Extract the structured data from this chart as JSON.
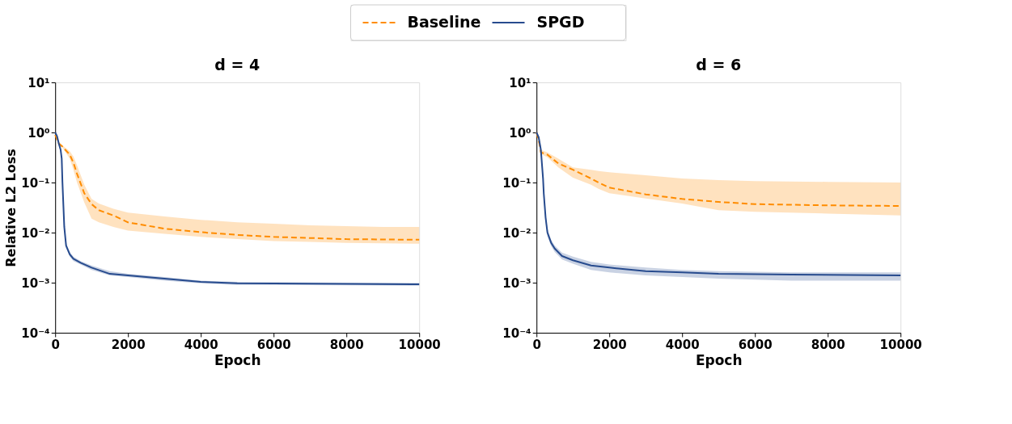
{
  "chart_data": [
    {
      "type": "line",
      "title": "d = 4",
      "xlabel": "Epoch",
      "ylabel": "Relative L2 Loss",
      "log": true,
      "grid": false,
      "legend": "top",
      "xlim": [
        0,
        10000
      ],
      "xticks": [
        0,
        2000,
        4000,
        6000,
        8000,
        10000
      ],
      "ylim": [
        0.0001,
        10
      ],
      "yticks": [
        {
          "value": 10,
          "label": "10¹"
        },
        {
          "value": 1,
          "label": "10⁰"
        },
        {
          "value": 0.1,
          "label": "10⁻¹"
        },
        {
          "value": 0.01,
          "label": "10⁻²"
        },
        {
          "value": 0.001,
          "label": "10⁻³"
        },
        {
          "value": 0.0001,
          "label": "10⁻⁴"
        }
      ],
      "series": [
        {
          "name": "Baseline",
          "color": "#ff8c00",
          "line_style": "dashed",
          "x": [
            0,
            100,
            200,
            400,
            500,
            600,
            800,
            1000,
            1200,
            1600,
            2000,
            3000,
            4000,
            5000,
            6000,
            7000,
            8000,
            9000,
            10000
          ],
          "values": [
            0.9,
            0.6,
            0.52,
            0.36,
            0.25,
            0.15,
            0.061,
            0.037,
            0.028,
            0.022,
            0.016,
            0.012,
            0.0102,
            0.009,
            0.0082,
            0.0078,
            0.0074,
            0.0073,
            0.0072
          ],
          "upper": [
            0.95,
            0.65,
            0.55,
            0.42,
            0.33,
            0.22,
            0.09,
            0.047,
            0.038,
            0.03,
            0.025,
            0.021,
            0.018,
            0.016,
            0.015,
            0.014,
            0.0135,
            0.013,
            0.013
          ],
          "lower": [
            0.85,
            0.55,
            0.5,
            0.3,
            0.18,
            0.1,
            0.04,
            0.019,
            0.016,
            0.013,
            0.011,
            0.0095,
            0.0082,
            0.0074,
            0.0068,
            0.0065,
            0.0062,
            0.0061,
            0.006
          ]
        },
        {
          "name": "SPGD",
          "color": "#274b8e",
          "line_style": "solid",
          "x": [
            0,
            50,
            100,
            150,
            180,
            200,
            250,
            300,
            400,
            500,
            700,
            1000,
            1500,
            2000,
            3000,
            4000,
            5000,
            6000,
            8000,
            10000
          ],
          "values": [
            1.0,
            0.85,
            0.6,
            0.45,
            0.3,
            0.1,
            0.013,
            0.0055,
            0.0037,
            0.003,
            0.0025,
            0.002,
            0.0015,
            0.0014,
            0.0012,
            0.00104,
            0.00097,
            0.00096,
            0.00095,
            0.00093
          ],
          "upper": [
            1.0,
            0.9,
            0.65,
            0.5,
            0.33,
            0.11,
            0.015,
            0.0062,
            0.0041,
            0.0033,
            0.0027,
            0.0022,
            0.0017,
            0.0015,
            0.0013,
            0.0011,
            0.00104,
            0.00102,
            0.001,
            0.00099
          ],
          "lower": [
            0.98,
            0.8,
            0.55,
            0.4,
            0.27,
            0.09,
            0.011,
            0.0049,
            0.0033,
            0.0027,
            0.0023,
            0.0018,
            0.0014,
            0.0013,
            0.0011,
            0.00097,
            0.0009,
            0.0009,
            0.00089,
            0.00087
          ]
        }
      ]
    },
    {
      "type": "line",
      "title": "d = 6",
      "xlabel": "Epoch",
      "log": true,
      "grid": false,
      "xlim": [
        0,
        10000
      ],
      "xticks": [
        0,
        2000,
        4000,
        6000,
        8000,
        10000
      ],
      "ylim": [
        0.0001,
        10
      ],
      "yticks": [
        {
          "value": 10,
          "label": "10¹"
        },
        {
          "value": 1,
          "label": "10⁰"
        },
        {
          "value": 0.1,
          "label": "10⁻¹"
        },
        {
          "value": 0.01,
          "label": "10⁻²"
        },
        {
          "value": 0.001,
          "label": "10⁻³"
        },
        {
          "value": 0.0001,
          "label": "10⁻⁴"
        }
      ],
      "series": [
        {
          "name": "Baseline",
          "color": "#ff8c00",
          "line_style": "dashed",
          "x": [
            0,
            80,
            120,
            300,
            600,
            1000,
            1500,
            1700,
            2000,
            3000,
            4000,
            5000,
            6000,
            8000,
            10000
          ],
          "values": [
            1.0,
            0.6,
            0.4,
            0.36,
            0.24,
            0.18,
            0.12,
            0.1,
            0.079,
            0.058,
            0.047,
            0.041,
            0.037,
            0.035,
            0.034
          ],
          "upper": [
            1.0,
            0.65,
            0.45,
            0.4,
            0.3,
            0.2,
            0.18,
            0.17,
            0.16,
            0.14,
            0.12,
            0.112,
            0.107,
            0.103,
            0.1
          ],
          "lower": [
            0.95,
            0.55,
            0.37,
            0.32,
            0.2,
            0.125,
            0.09,
            0.075,
            0.061,
            0.048,
            0.038,
            0.028,
            0.026,
            0.024,
            0.022
          ]
        },
        {
          "name": "SPGD",
          "color": "#274b8e",
          "line_style": "solid",
          "x": [
            0,
            60,
            120,
            180,
            200,
            250,
            300,
            400,
            500,
            700,
            1000,
            1500,
            2000,
            3000,
            4000,
            5000,
            7000,
            10000
          ],
          "values": [
            1.0,
            0.8,
            0.45,
            0.12,
            0.06,
            0.02,
            0.01,
            0.0063,
            0.0048,
            0.0034,
            0.0028,
            0.0022,
            0.002,
            0.0017,
            0.0016,
            0.0015,
            0.00145,
            0.0014
          ],
          "upper": [
            1.0,
            0.85,
            0.5,
            0.14,
            0.07,
            0.023,
            0.012,
            0.0072,
            0.0055,
            0.004,
            0.0033,
            0.0026,
            0.0023,
            0.002,
            0.0018,
            0.0017,
            0.0016,
            0.0016
          ],
          "lower": [
            0.98,
            0.75,
            0.4,
            0.1,
            0.05,
            0.017,
            0.0085,
            0.0054,
            0.0041,
            0.0029,
            0.0024,
            0.0018,
            0.0016,
            0.0014,
            0.0013,
            0.0012,
            0.0011,
            0.0011
          ]
        }
      ]
    }
  ]
}
